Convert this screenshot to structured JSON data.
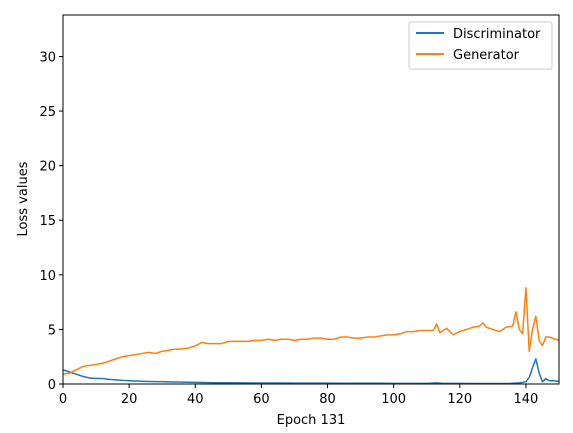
{
  "chart_data": {
    "type": "line",
    "xlabel": "Epoch 131",
    "ylabel": "Loss values",
    "xlim": [
      0,
      150
    ],
    "ylim": [
      0,
      33.8
    ],
    "xticks": [
      0,
      20,
      40,
      60,
      80,
      100,
      120,
      140
    ],
    "yticks": [
      0,
      5,
      10,
      15,
      20,
      25,
      30
    ],
    "grid": false,
    "legend_position": "upper-right",
    "series": [
      {
        "name": "Discriminator",
        "color": "#1f77b4",
        "x": [
          0,
          2,
          4,
          6,
          8,
          10,
          12,
          14,
          16,
          18,
          20,
          22,
          24,
          26,
          28,
          30,
          32,
          34,
          36,
          38,
          40,
          42,
          44,
          46,
          48,
          50,
          55,
          60,
          65,
          70,
          75,
          80,
          85,
          90,
          95,
          100,
          105,
          110,
          113,
          115,
          120,
          125,
          130,
          135,
          138,
          140,
          141,
          142,
          143,
          144,
          145,
          146,
          147,
          148,
          150
        ],
        "y": [
          1.3,
          1.1,
          0.9,
          0.7,
          0.55,
          0.5,
          0.5,
          0.42,
          0.38,
          0.33,
          0.3,
          0.27,
          0.25,
          0.23,
          0.22,
          0.22,
          0.2,
          0.18,
          0.17,
          0.16,
          0.15,
          0.14,
          0.13,
          0.12,
          0.12,
          0.11,
          0.1,
          0.09,
          0.09,
          0.08,
          0.08,
          0.08,
          0.07,
          0.07,
          0.07,
          0.06,
          0.06,
          0.06,
          0.1,
          0.06,
          0.06,
          0.05,
          0.05,
          0.05,
          0.1,
          0.2,
          0.6,
          1.5,
          2.3,
          1.0,
          0.2,
          0.5,
          0.3,
          0.3,
          0.25
        ]
      },
      {
        "name": "Generator",
        "color": "#ff7f0e",
        "x": [
          0,
          2,
          4,
          6,
          8,
          10,
          12,
          14,
          16,
          18,
          20,
          22,
          24,
          26,
          28,
          30,
          32,
          34,
          36,
          38,
          40,
          42,
          44,
          46,
          48,
          50,
          52,
          54,
          56,
          58,
          60,
          62,
          64,
          66,
          68,
          70,
          72,
          74,
          76,
          78,
          80,
          82,
          84,
          86,
          88,
          90,
          92,
          94,
          96,
          98,
          100,
          102,
          104,
          106,
          108,
          110,
          112,
          113,
          114,
          116,
          118,
          120,
          122,
          124,
          126,
          127,
          128,
          130,
          132,
          134,
          136,
          137,
          138,
          139,
          140,
          141,
          142,
          143,
          144,
          145,
          146,
          147,
          148,
          150
        ],
        "y": [
          0.9,
          1.0,
          1.3,
          1.6,
          1.7,
          1.8,
          1.9,
          2.1,
          2.3,
          2.5,
          2.6,
          2.7,
          2.8,
          2.9,
          2.8,
          3.0,
          3.1,
          3.2,
          3.2,
          3.3,
          3.5,
          3.8,
          3.7,
          3.7,
          3.7,
          3.9,
          3.9,
          3.9,
          3.9,
          4.0,
          4.0,
          4.1,
          4.0,
          4.1,
          4.1,
          4.0,
          4.1,
          4.1,
          4.2,
          4.2,
          4.1,
          4.1,
          4.3,
          4.3,
          4.2,
          4.2,
          4.3,
          4.3,
          4.4,
          4.5,
          4.5,
          4.6,
          4.8,
          4.8,
          4.9,
          4.9,
          4.9,
          5.5,
          4.7,
          5.1,
          4.5,
          4.8,
          5.0,
          5.2,
          5.3,
          5.6,
          5.2,
          5.0,
          4.8,
          5.2,
          5.3,
          6.6,
          5.0,
          4.6,
          8.8,
          3.0,
          5.0,
          6.2,
          4.0,
          3.5,
          4.3,
          4.3,
          4.2,
          4.0
        ]
      }
    ]
  }
}
